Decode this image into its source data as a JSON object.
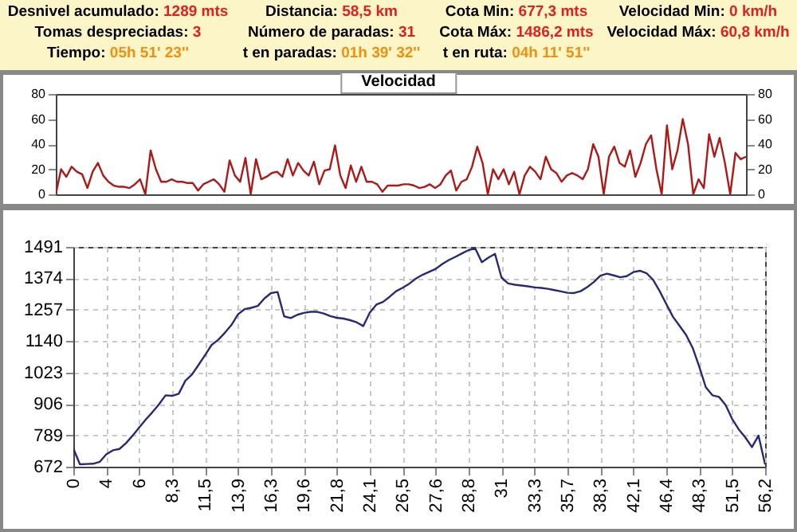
{
  "chart_data": [
    {
      "type": "other",
      "annotations": [
        "Desnivel acumulado: 1289 mts",
        "Distancia: 58,5 km",
        "Cota Min: 677,3 mts",
        "Velocidad Min: 0 km/h",
        "Tomas despreciadas: 3",
        "Número de paradas: 31",
        "Cota Máx: 1486,2 mts",
        "Velocidad Máx: 60,8 km/h",
        "Tiempo: 05h 51' 23''",
        "t en paradas: 01h 39' 32''",
        "t en ruta: 04h 11' 51''"
      ]
    },
    {
      "type": "line",
      "title": "Velocidad",
      "tick_labels": "y",
      "categories": [
        null,
        null,
        null,
        null,
        null,
        null,
        null,
        null,
        null,
        null,
        null,
        null,
        null,
        null,
        null,
        null,
        null,
        null,
        null,
        null,
        null,
        null,
        null,
        null,
        null,
        null,
        null,
        null,
        null,
        null,
        null,
        null,
        null,
        null,
        null,
        null,
        null,
        null,
        null,
        null,
        null,
        null,
        null,
        null,
        null,
        null,
        null,
        null,
        null,
        null,
        null,
        null,
        null,
        null,
        null,
        null,
        null,
        null,
        null,
        null,
        null,
        null,
        null,
        null,
        null,
        null,
        null,
        null,
        null,
        null,
        null,
        null,
        null,
        null,
        null,
        null,
        null,
        null,
        null,
        null,
        null,
        null,
        null,
        null,
        null,
        null,
        null,
        null,
        null,
        null,
        null,
        null,
        null,
        null,
        null,
        null,
        null,
        null,
        null,
        null,
        null,
        null,
        null,
        null,
        null,
        null,
        null,
        null,
        null,
        null,
        null,
        null,
        null,
        null,
        null,
        null,
        null,
        null,
        null,
        null,
        null,
        null,
        null,
        null,
        null,
        null,
        null,
        null,
        null,
        null,
        null,
        null
      ],
      "series": [
        {
          "color": "#b01818",
          "values": [
            0,
            20,
            14,
            22,
            18,
            16,
            5,
            18,
            25,
            15,
            10,
            7,
            6,
            6,
            5,
            8,
            12,
            0,
            35,
            20,
            10,
            10,
            12,
            10,
            10,
            9,
            9,
            3,
            8,
            10,
            12,
            8,
            2,
            27,
            15,
            10,
            29,
            0,
            28,
            12,
            14,
            17,
            18,
            14,
            28,
            15,
            25,
            19,
            15,
            26,
            8,
            19,
            20,
            39,
            15,
            5,
            23,
            10,
            22,
            10,
            10,
            8,
            2,
            7,
            7,
            7,
            8,
            8,
            7,
            5,
            6,
            8,
            5,
            8,
            15,
            19,
            3,
            10,
            12,
            22,
            38,
            25,
            0,
            20,
            12,
            20,
            8,
            18,
            0,
            15,
            22,
            18,
            12,
            30,
            20,
            17,
            10,
            15,
            17,
            15,
            12,
            20,
            40,
            30,
            0,
            30,
            38,
            25,
            22,
            35,
            14,
            25,
            40,
            47,
            20,
            0,
            55,
            20,
            35,
            60,
            40,
            0,
            12,
            5,
            48,
            30,
            45,
            25,
            0,
            33,
            28,
            30
          ]
        }
      ],
      "ylim": [
        0,
        80
      ],
      "yticks": [
        0,
        20,
        40,
        60,
        80
      ],
      "y2lim": [
        0,
        80
      ],
      "y2ticks": [
        0,
        20,
        40,
        60,
        80
      ]
    },
    {
      "type": "line",
      "grid": true,
      "categories": [
        "0",
        null,
        null,
        null,
        null,
        "4",
        null,
        null,
        null,
        null,
        "6",
        null,
        null,
        null,
        null,
        "8,3",
        null,
        null,
        null,
        null,
        "11,5",
        null,
        null,
        null,
        null,
        "13,9",
        null,
        null,
        null,
        null,
        "16,3",
        null,
        null,
        null,
        null,
        "19,6",
        null,
        null,
        null,
        null,
        "21,8",
        null,
        null,
        null,
        null,
        "24,1",
        null,
        null,
        null,
        null,
        "26,5",
        null,
        null,
        null,
        null,
        "27,6",
        null,
        null,
        null,
        null,
        "28,8",
        null,
        null,
        null,
        null,
        "31",
        null,
        null,
        null,
        null,
        "33,3",
        null,
        null,
        null,
        null,
        "35,7",
        null,
        null,
        null,
        null,
        "38,3",
        null,
        null,
        null,
        null,
        "42,1",
        null,
        null,
        null,
        null,
        "46,4",
        null,
        null,
        null,
        null,
        "48,3",
        null,
        null,
        null,
        null,
        "51,5",
        null,
        null,
        null,
        null,
        "56,2"
      ],
      "series": [
        {
          "color": "#28287a",
          "values": [
            740,
            681,
            682,
            683,
            690,
            718,
            733,
            738,
            760,
            788,
            818,
            848,
            875,
            904,
            938,
            936,
            944,
            992,
            1015,
            1051,
            1088,
            1126,
            1145,
            1171,
            1200,
            1240,
            1259,
            1264,
            1271,
            1299,
            1319,
            1323,
            1232,
            1226,
            1238,
            1245,
            1249,
            1249,
            1243,
            1233,
            1227,
            1224,
            1218,
            1210,
            1196,
            1246,
            1276,
            1286,
            1305,
            1326,
            1339,
            1354,
            1373,
            1387,
            1398,
            1409,
            1427,
            1442,
            1454,
            1467,
            1479,
            1486,
            1434,
            1451,
            1465,
            1376,
            1355,
            1350,
            1347,
            1344,
            1340,
            1338,
            1335,
            1330,
            1325,
            1320,
            1319,
            1326,
            1341,
            1360,
            1384,
            1391,
            1385,
            1378,
            1382,
            1397,
            1402,
            1393,
            1368,
            1326,
            1278,
            1231,
            1197,
            1163,
            1115,
            1045,
            968,
            938,
            932,
            902,
            850,
            811,
            781,
            745,
            788,
            680
          ]
        }
      ],
      "ylim": [
        672,
        1491
      ],
      "yticks": [
        672,
        789,
        906,
        1023,
        1140,
        1257,
        1374,
        1491
      ]
    }
  ]
}
